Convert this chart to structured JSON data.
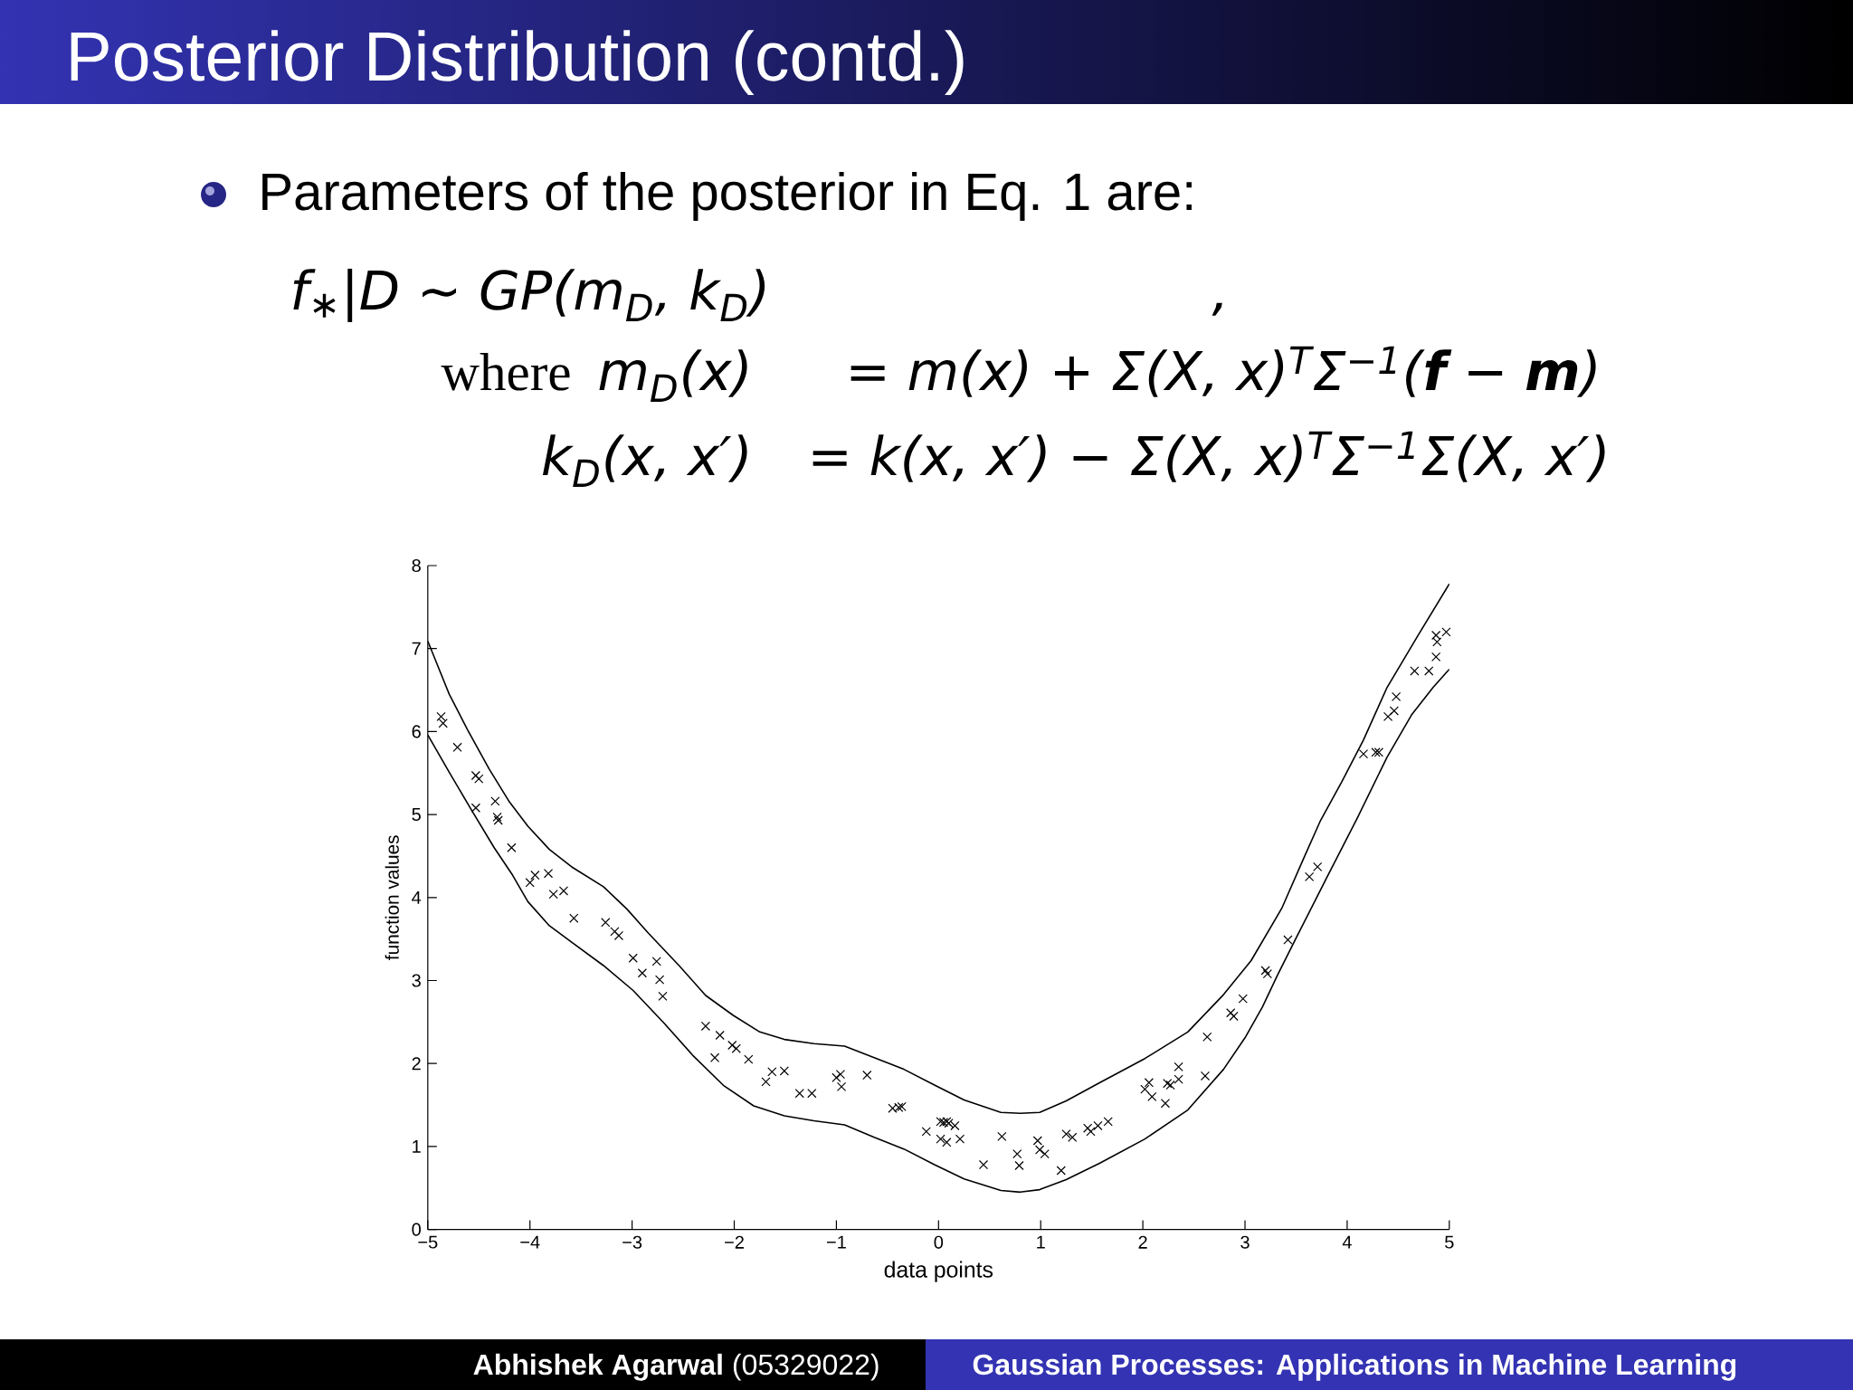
{
  "chart_data": {
    "type": "scatter",
    "title": "Posterior Distribution (contd.)",
    "annotations": [
      "Parameters of the posterior in Eq. 1 are:",
      "f$_{∗}$|D ∼ GP(m$_{D}$, k$_{D}$)",
      ",",
      "where",
      "m$_{D}$(x)",
      "= m(x) + Σ(X, x)$^{T}$Σ$^{−1}$(**f** − **m**)",
      "k$_{D}$(x, x′)",
      "= k(x, x′) − Σ(X, x)$^{T}$Σ$^{−1}$Σ(X, x′)",
      "**Abhishek Agarwal** (05329022)",
      "Gaussian Processes: Applications in Machine Learning"
    ],
    "xlabel": "data points",
    "ylabel": "function values",
    "xlim": [
      -5,
      5
    ],
    "ylim": [
      0,
      8
    ],
    "xticks": [
      {
        "value": -5,
        "label": "−5"
      },
      {
        "value": -4,
        "label": "−4"
      },
      {
        "value": -3,
        "label": "−3"
      },
      {
        "value": -2,
        "label": "−2"
      },
      {
        "value": -1,
        "label": "−1"
      },
      0,
      1,
      2,
      3,
      4,
      5
    ],
    "yticks": [
      0,
      1,
      2,
      3,
      4,
      5,
      6,
      7,
      8
    ],
    "series": [
      {
        "type": "line",
        "color": "#000000",
        "x": [
          -5,
          -4.79,
          -4.61,
          -4.4,
          -4.2,
          -4.02,
          -3.81,
          -3.58,
          -3.28,
          -3.05,
          -2.84,
          -2.54,
          -2.28,
          -2.01,
          -1.75,
          -1.51,
          -1.22,
          -0.92,
          -0.63,
          -0.34,
          -0.04,
          0.25,
          0.61,
          0.8,
          0.99,
          1.25,
          1.58,
          2.02,
          2.44,
          2.79,
          3.06,
          3.36,
          3.57,
          3.74,
          3.95,
          4.16,
          4.39,
          4.69,
          5
        ],
        "values": [
          7.09,
          6.45,
          6.02,
          5.55,
          5.15,
          4.86,
          4.58,
          4.36,
          4.13,
          3.86,
          3.57,
          3.18,
          2.82,
          2.58,
          2.38,
          2.29,
          2.24,
          2.21,
          2.07,
          1.93,
          1.74,
          1.56,
          1.41,
          1.4,
          1.41,
          1.55,
          1.77,
          2.06,
          2.38,
          2.83,
          3.24,
          3.87,
          4.46,
          4.93,
          5.4,
          5.9,
          6.53,
          7.15,
          7.78
        ]
      },
      {
        "type": "line",
        "color": "#000000",
        "x": [
          -5,
          -4.79,
          -4.58,
          -4.35,
          -4.17,
          -4.02,
          -3.81,
          -3.58,
          -3.28,
          -2.99,
          -2.69,
          -2.4,
          -2.1,
          -1.81,
          -1.51,
          -1.22,
          -0.92,
          -0.63,
          -0.34,
          -0.04,
          0.25,
          0.61,
          0.8,
          0.99,
          1.25,
          1.58,
          2.02,
          2.44,
          2.79,
          3.0,
          3.17,
          3.32,
          3.5,
          3.8,
          4.1,
          4.39,
          4.63,
          4.84,
          5
        ],
        "values": [
          5.96,
          5.51,
          5.07,
          4.6,
          4.27,
          3.95,
          3.66,
          3.45,
          3.18,
          2.88,
          2.49,
          2.09,
          1.73,
          1.49,
          1.37,
          1.31,
          1.26,
          1.11,
          0.97,
          0.78,
          0.61,
          0.47,
          0.45,
          0.48,
          0.6,
          0.8,
          1.09,
          1.44,
          1.93,
          2.31,
          2.68,
          3.07,
          3.51,
          4.24,
          4.96,
          5.69,
          6.2,
          6.53,
          6.75
        ]
      },
      {
        "color": "#000000",
        "marker": "cross",
        "x": [
          -4.87,
          -4.85,
          -4.71,
          -4.53,
          -4.5,
          -4.53,
          -4.34,
          -4.32,
          -4.31,
          -4.18,
          -4.0,
          -3.95,
          -3.82,
          -3.77,
          -3.67,
          -3.57,
          -3.26,
          -3.17,
          -3.13,
          -2.99,
          -2.9,
          -2.76,
          -2.73,
          -2.7,
          -2.28,
          -2.14,
          -2.02,
          -1.98,
          -2.19,
          -1.86,
          -1.69,
          -1.63,
          -1.51,
          -1.36,
          -1.24,
          -1.0,
          -0.96,
          -0.95,
          -0.7,
          -0.45,
          -0.39,
          -0.36,
          -0.12,
          0.02,
          0.05,
          0.08,
          0.1,
          0.16,
          0.02,
          0.08,
          0.21,
          0.44,
          0.62,
          0.77,
          0.79,
          0.97,
          0.99,
          1.04,
          1.2,
          1.25,
          1.31,
          1.46,
          1.49,
          1.56,
          1.66,
          2.02,
          2.06,
          2.09,
          2.22,
          2.24,
          2.27,
          2.35,
          2.35,
          2.61,
          2.63,
          2.86,
          2.89,
          2.98,
          3.2,
          3.22,
          3.42,
          3.63,
          3.71,
          4.16,
          4.28,
          4.31,
          4.4,
          4.46,
          4.48,
          4.66,
          4.8,
          4.87,
          4.88,
          4.87,
          4.97
        ],
        "values": [
          6.18,
          6.1,
          5.81,
          5.47,
          5.43,
          5.08,
          5.16,
          4.97,
          4.93,
          4.6,
          4.18,
          4.27,
          4.29,
          4.04,
          4.08,
          3.75,
          3.7,
          3.59,
          3.54,
          3.27,
          3.09,
          3.23,
          3.01,
          2.81,
          2.45,
          2.34,
          2.22,
          2.18,
          2.07,
          2.05,
          1.78,
          1.9,
          1.91,
          1.64,
          1.64,
          1.83,
          1.87,
          1.72,
          1.86,
          1.46,
          1.47,
          1.48,
          1.18,
          1.3,
          1.29,
          1.3,
          1.28,
          1.25,
          1.09,
          1.05,
          1.09,
          0.78,
          1.12,
          0.91,
          0.77,
          1.07,
          0.96,
          0.91,
          0.71,
          1.15,
          1.11,
          1.22,
          1.18,
          1.25,
          1.3,
          1.69,
          1.77,
          1.6,
          1.52,
          1.76,
          1.74,
          1.81,
          1.96,
          1.85,
          2.32,
          2.61,
          2.57,
          2.78,
          3.12,
          3.08,
          3.49,
          4.25,
          4.37,
          5.73,
          5.75,
          5.75,
          6.18,
          6.25,
          6.42,
          6.73,
          6.73,
          6.9,
          7.08,
          7.16,
          7.2
        ]
      }
    ]
  }
}
